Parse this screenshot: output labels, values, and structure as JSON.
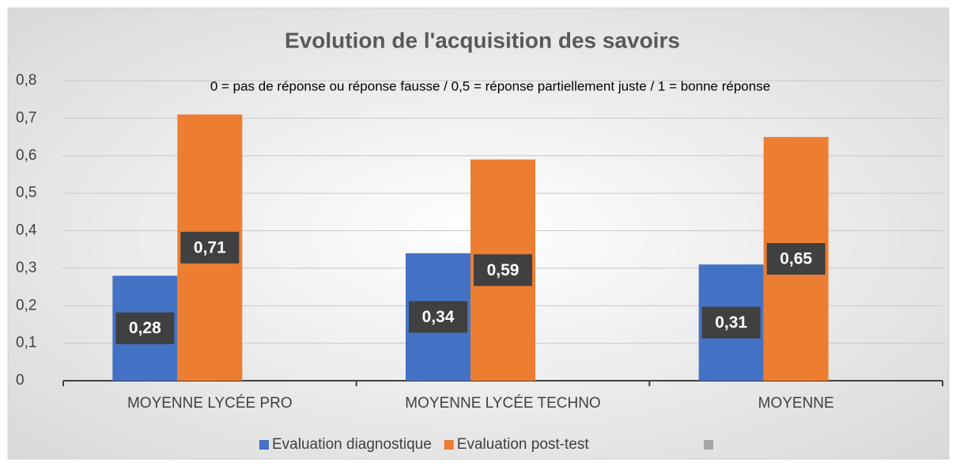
{
  "chart_data": {
    "type": "bar",
    "title": "Evolution de l'acquisition des savoirs",
    "subtitle": "0 = pas de réponse ou réponse fausse / 0,5 = réponse partiellement juste / 1 = bonne réponse",
    "categories": [
      "MOYENNE LYCÉE PRO",
      "MOYENNE LYCÉE TECHNO",
      "MOYENNE"
    ],
    "series": [
      {
        "name": "Evaluation diagnostique",
        "color": "#4472c4",
        "values": [
          0.28,
          0.34,
          0.31
        ],
        "value_labels": [
          "0,28",
          "0,34",
          "0,31"
        ]
      },
      {
        "name": "Evaluation post-test",
        "color": "#ed7d31",
        "values": [
          0.71,
          0.59,
          0.65
        ],
        "value_labels": [
          "0,71",
          "0,59",
          "0,65"
        ]
      }
    ],
    "ylim": [
      0,
      0.8
    ],
    "yticks": [
      0,
      {
        "value": 0.1,
        "label": "0,1"
      },
      {
        "value": 0.2,
        "label": "0,2"
      },
      {
        "value": 0.3,
        "label": "0,3"
      },
      {
        "value": 0.4,
        "label": "0,4"
      },
      {
        "value": 0.5,
        "label": "0,5"
      },
      {
        "value": 0.6,
        "label": "0,6"
      },
      {
        "value": 0.7,
        "label": "0,7"
      },
      {
        "value": 0.8,
        "label": "0,8"
      }
    ],
    "grid": true,
    "legend": "bottom"
  }
}
